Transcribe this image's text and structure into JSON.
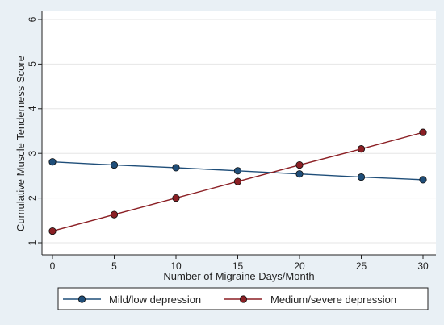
{
  "chart_data": {
    "type": "line",
    "title": "",
    "xlabel": "Number of Migraine Days/Month",
    "ylabel": "Cumulative Muscle Tenderness Score",
    "x": [
      0,
      5,
      10,
      15,
      20,
      25,
      30
    ],
    "xlim": [
      0,
      30
    ],
    "ylim": [
      1,
      6
    ],
    "xticks": [
      "0",
      "5",
      "10",
      "15",
      "20",
      "25",
      "30"
    ],
    "yticks": [
      "1",
      "2",
      "3",
      "4",
      "5",
      "6"
    ],
    "grid": "horizontal",
    "legend_position": "bottom",
    "series": [
      {
        "name": "Mild/low depression",
        "color": "#1f4e79",
        "values": [
          2.81,
          2.74,
          2.68,
          2.61,
          2.54,
          2.47,
          2.41
        ]
      },
      {
        "name": "Medium/severe depression",
        "color": "#8b1f24",
        "values": [
          1.26,
          1.63,
          2.0,
          2.37,
          2.74,
          3.1,
          3.47
        ]
      }
    ]
  }
}
